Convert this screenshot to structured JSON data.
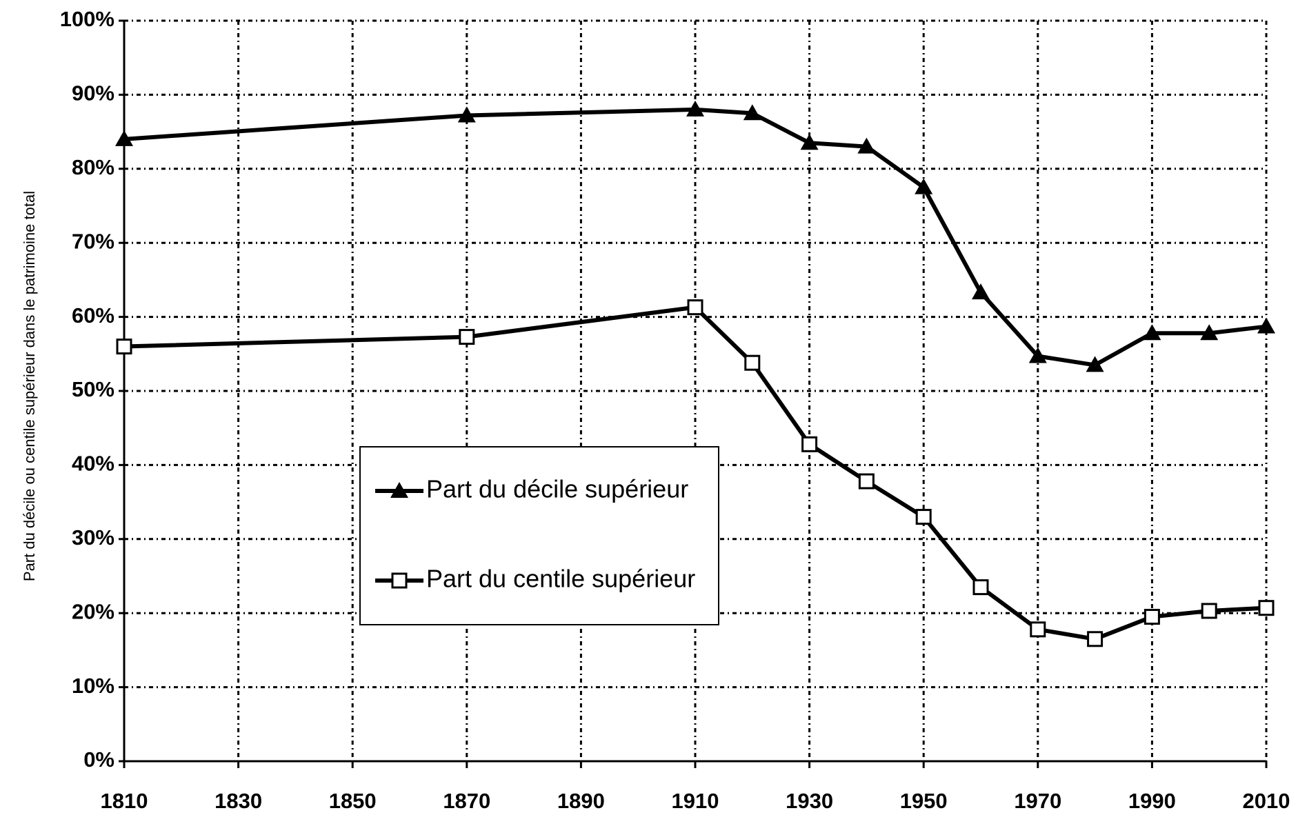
{
  "chart_data": {
    "type": "line",
    "y_label": "Part du décile ou centile supérieur dans le patrimoine total",
    "x": [
      1810,
      1870,
      1910,
      1920,
      1930,
      1940,
      1950,
      1960,
      1970,
      1980,
      1990,
      2000,
      2010
    ],
    "series": [
      {
        "name": "Part du décile supérieur",
        "color": "#000000",
        "marker": "triangle",
        "values": [
          84,
          87.2,
          88,
          87.5,
          83.5,
          83,
          77.5,
          63.3,
          54.7,
          53.5,
          57.8,
          57.8,
          58.7
        ]
      },
      {
        "name": "Part du centile supérieur",
        "color": "#000000",
        "marker": "square",
        "values": [
          56,
          57.3,
          61.3,
          53.8,
          42.8,
          37.8,
          33,
          23.5,
          17.8,
          16.5,
          19.5,
          20.3,
          20.7
        ]
      }
    ],
    "xlim": [
      1810,
      2010
    ],
    "xticks": [
      1810,
      1830,
      1850,
      1870,
      1890,
      1910,
      1930,
      1950,
      1970,
      1990,
      2010
    ],
    "ylim": [
      0,
      100
    ],
    "yticks": [
      {
        "value": 0,
        "label": "0%"
      },
      {
        "value": 10,
        "label": "10%"
      },
      {
        "value": 20,
        "label": "20%"
      },
      {
        "value": 30,
        "label": "30%"
      },
      {
        "value": 40,
        "label": "40%"
      },
      {
        "value": 50,
        "label": "50%"
      },
      {
        "value": 60,
        "label": "60%"
      },
      {
        "value": 70,
        "label": "70%"
      },
      {
        "value": 80,
        "label": "80%"
      },
      {
        "value": 90,
        "label": "90%"
      },
      {
        "value": 100,
        "label": "100%"
      }
    ],
    "grid": true
  }
}
